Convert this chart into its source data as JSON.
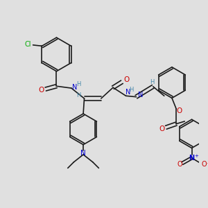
{
  "bg_color": "#e0e0e0",
  "bond_color": "#1a1a1a",
  "bond_width": 1.2,
  "atom_colors": {
    "C": "#1a1a1a",
    "N": "#0000cc",
    "O": "#cc0000",
    "Cl": "#00aa00",
    "H": "#4488aa"
  }
}
